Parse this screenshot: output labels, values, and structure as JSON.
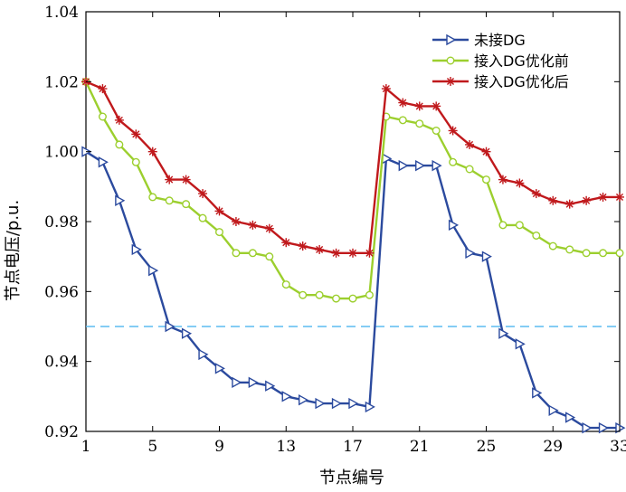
{
  "chart_data": {
    "type": "line",
    "xlabel": "节点编号",
    "ylabel": "节点电压/p.u.",
    "xlim": [
      1,
      33
    ],
    "ylim": [
      0.92,
      1.04
    ],
    "xticks": [
      1,
      5,
      9,
      13,
      17,
      21,
      25,
      29,
      33
    ],
    "xtick_labels": [
      "1",
      "5",
      "9",
      "13",
      "17",
      "21",
      "25",
      "29",
      "33"
    ],
    "yticks": [
      0.92,
      0.94,
      0.96,
      0.98,
      1.0,
      1.02,
      1.04
    ],
    "ytick_labels": [
      "0.92",
      "0.94",
      "0.96",
      "0.98",
      "1.00",
      "1.02",
      "1.04"
    ],
    "reference_line": {
      "y": 0.95,
      "style": "dashed",
      "color": "#5bbcf0"
    },
    "legend_position": "top-right",
    "x": [
      1,
      2,
      3,
      4,
      5,
      6,
      7,
      8,
      9,
      10,
      11,
      12,
      13,
      14,
      15,
      16,
      17,
      18,
      19,
      20,
      21,
      22,
      23,
      24,
      25,
      26,
      27,
      28,
      29,
      30,
      31,
      32,
      33
    ],
    "series": [
      {
        "name": "未接DG",
        "color": "#2b4a9e",
        "marker": "triangle-right",
        "values": [
          1.0,
          0.997,
          0.986,
          0.972,
          0.966,
          0.95,
          0.948,
          0.942,
          0.938,
          0.934,
          0.934,
          0.933,
          0.93,
          0.929,
          0.928,
          0.928,
          0.928,
          0.927,
          0.998,
          0.996,
          0.996,
          0.996,
          0.979,
          0.971,
          0.97,
          0.948,
          0.945,
          0.931,
          0.926,
          0.924,
          0.921,
          0.921,
          0.921
        ]
      },
      {
        "name": "接入DG优化前",
        "color": "#9ccf2e",
        "marker": "circle",
        "values": [
          1.02,
          1.01,
          1.002,
          0.997,
          0.987,
          0.986,
          0.985,
          0.981,
          0.977,
          0.971,
          0.971,
          0.97,
          0.962,
          0.959,
          0.959,
          0.958,
          0.958,
          0.959,
          1.01,
          1.009,
          1.008,
          1.006,
          0.997,
          0.995,
          0.992,
          0.979,
          0.979,
          0.976,
          0.973,
          0.972,
          0.971,
          0.971,
          0.971
        ]
      },
      {
        "name": "接入DG优化后",
        "color": "#c0191c",
        "marker": "asterisk",
        "values": [
          1.02,
          1.018,
          1.009,
          1.005,
          1.0,
          0.992,
          0.992,
          0.988,
          0.983,
          0.98,
          0.979,
          0.978,
          0.974,
          0.973,
          0.972,
          0.971,
          0.971,
          0.971,
          1.018,
          1.014,
          1.013,
          1.013,
          1.006,
          1.002,
          1.0,
          0.992,
          0.991,
          0.988,
          0.986,
          0.985,
          0.986,
          0.987,
          0.987
        ]
      }
    ]
  }
}
